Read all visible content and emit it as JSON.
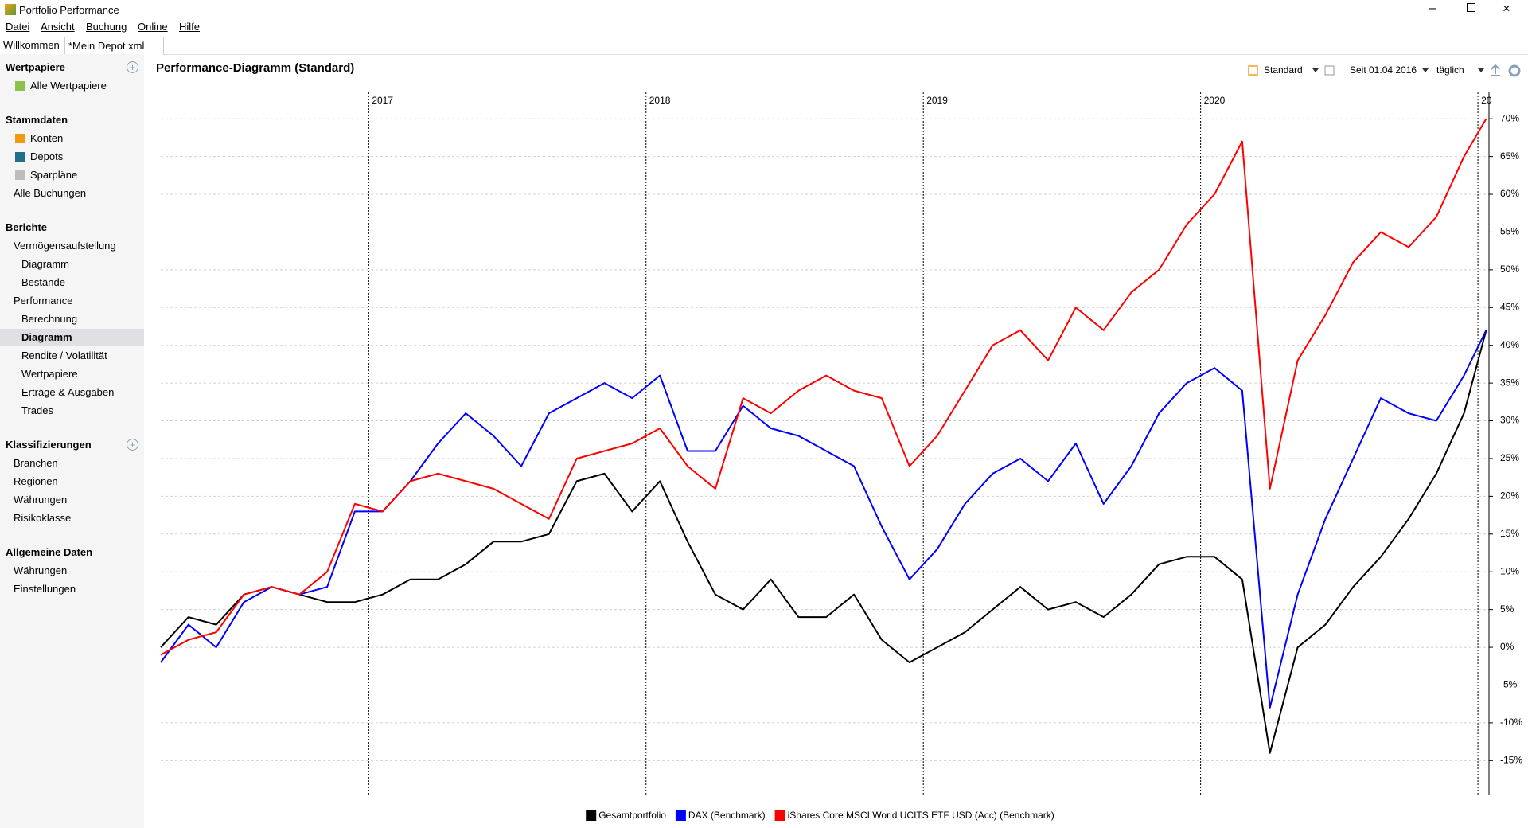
{
  "window": {
    "title": "Portfolio Performance"
  },
  "menu": [
    "Datei",
    "Ansicht",
    "Buchung",
    "Online",
    "Hilfe"
  ],
  "tabs": [
    "Willkommen",
    "*Mein Depot.xml"
  ],
  "sidebar": [
    {
      "title": "Wertpapiere",
      "items": [
        {
          "label": "Alle Wertpapiere"
        }
      ]
    },
    {
      "title": "Stammdaten",
      "items": [
        {
          "label": "Konten"
        },
        {
          "label": "Depots"
        },
        {
          "label": "Sparpläne"
        },
        {
          "label": "Alle Buchungen"
        }
      ]
    },
    {
      "title": "Berichte",
      "items": [
        {
          "label": "Vermögensaufstellung",
          "children": [
            "Diagramm",
            "Bestände"
          ]
        },
        {
          "label": "Performance",
          "children": [
            "Berechnung",
            "Diagramm",
            "Rendite / Volatilität",
            "Wertpapiere",
            "Erträge & Ausgaben",
            "Trades"
          ]
        }
      ]
    },
    {
      "title": "Klassifizierungen",
      "items": [
        {
          "label": "Branchen"
        },
        {
          "label": "Regionen"
        },
        {
          "label": "Währungen"
        },
        {
          "label": "Risikoklasse"
        }
      ]
    },
    {
      "title": "Allgemeine Daten",
      "items": [
        {
          "label": "Währungen"
        },
        {
          "label": "Einstellungen"
        }
      ]
    }
  ],
  "toolbar": {
    "view": "Standard",
    "period": "Seit 01.04.2016",
    "interval": "täglich"
  },
  "chart_data": {
    "type": "line",
    "title": "Performance-Diagramm (Standard)",
    "x": [
      2016.25,
      2016.35,
      2016.45,
      2016.55,
      2016.65,
      2016.75,
      2016.85,
      2016.95,
      2017.05,
      2017.15,
      2017.25,
      2017.35,
      2017.45,
      2017.55,
      2017.65,
      2017.75,
      2017.85,
      2017.95,
      2018.05,
      2018.15,
      2018.25,
      2018.35,
      2018.45,
      2018.55,
      2018.65,
      2018.75,
      2018.85,
      2018.95,
      2019.05,
      2019.15,
      2019.25,
      2019.35,
      2019.45,
      2019.55,
      2019.65,
      2019.75,
      2019.85,
      2019.95,
      2020.05,
      2020.15,
      2020.25,
      2020.35,
      2020.45,
      2020.55,
      2020.65,
      2020.75,
      2020.85,
      2020.95,
      2021.03
    ],
    "series": [
      {
        "name": "Gesamtportfolio",
        "color": "#000000",
        "values": [
          0,
          4,
          3,
          7,
          8,
          7,
          6,
          6,
          7,
          9,
          9,
          11,
          14,
          14,
          15,
          22,
          23,
          18,
          22,
          14,
          7,
          5,
          9,
          4,
          4,
          7,
          1,
          -2,
          0,
          2,
          5,
          8,
          5,
          6,
          4,
          7,
          11,
          12,
          12,
          9,
          -14,
          0,
          3,
          8,
          12,
          17,
          23,
          31,
          42
        ]
      },
      {
        "name": "DAX (Benchmark)",
        "color": "#0000ff",
        "values": [
          -2,
          3,
          0,
          6,
          8,
          7,
          8,
          18,
          18,
          22,
          27,
          31,
          28,
          24,
          31,
          33,
          35,
          33,
          36,
          26,
          26,
          32,
          29,
          28,
          26,
          24,
          16,
          9,
          13,
          19,
          23,
          25,
          22,
          27,
          19,
          24,
          31,
          35,
          37,
          34,
          -8,
          7,
          17,
          25,
          33,
          31,
          30,
          36,
          42
        ]
      },
      {
        "name": "iShares Core MSCI World UCITS ETF USD (Acc) (Benchmark)",
        "color": "#ff0000",
        "values": [
          -1,
          1,
          2,
          7,
          8,
          7,
          10,
          19,
          18,
          22,
          23,
          22,
          21,
          19,
          17,
          25,
          26,
          27,
          29,
          24,
          21,
          33,
          31,
          34,
          36,
          34,
          33,
          24,
          28,
          34,
          40,
          42,
          38,
          45,
          42,
          47,
          50,
          56,
          60,
          67,
          21,
          38,
          44,
          51,
          55,
          53,
          57,
          65,
          70
        ]
      }
    ],
    "xlim": [
      2016.25,
      2021.04
    ],
    "xticks": [
      2017,
      2018,
      2019,
      2020,
      {
        "value": 2021,
        "label": "20"
      }
    ],
    "ylim": [
      -19.5,
      73.5
    ],
    "yticks": [
      {
        "value": -15,
        "label": "-15%"
      },
      {
        "value": -10,
        "label": "-10%"
      },
      {
        "value": -5,
        "label": "-5%"
      },
      {
        "value": 0,
        "label": "0%"
      },
      {
        "value": 5,
        "label": "5%"
      },
      {
        "value": 10,
        "label": "10%"
      },
      {
        "value": 15,
        "label": "15%"
      },
      {
        "value": 20,
        "label": "20%"
      },
      {
        "value": 25,
        "label": "25%"
      },
      {
        "value": 30,
        "label": "30%"
      },
      {
        "value": 35,
        "label": "35%"
      },
      {
        "value": 40,
        "label": "40%"
      },
      {
        "value": 45,
        "label": "45%"
      },
      {
        "value": 50,
        "label": "50%"
      },
      {
        "value": 55,
        "label": "55%"
      },
      {
        "value": 60,
        "label": "60%"
      },
      {
        "value": 65,
        "label": "65%"
      },
      {
        "value": 70,
        "label": "70%"
      }
    ],
    "grid": true
  }
}
